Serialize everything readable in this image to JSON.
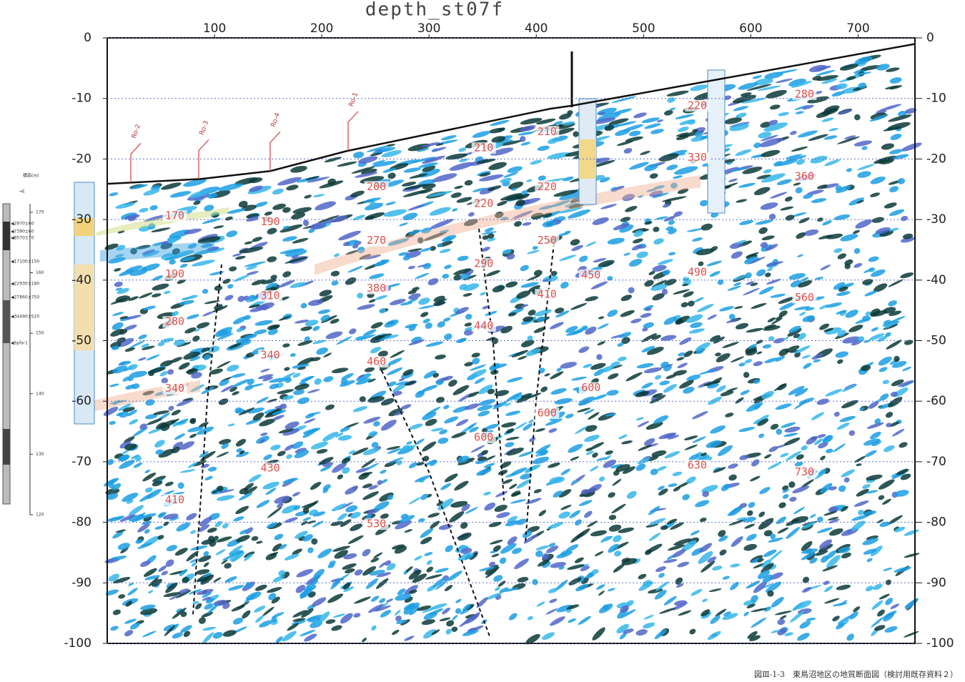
{
  "chart_data": {
    "type": "section",
    "title": "depth_st07f",
    "xlim": [
      0,
      753
    ],
    "ylim": [
      -100,
      0
    ],
    "xticks": [
      100,
      200,
      300,
      400,
      500,
      600,
      700
    ],
    "yticks": [
      0,
      -10,
      -20,
      -30,
      -40,
      -50,
      -60,
      -70,
      -80,
      -90,
      -100
    ],
    "y2ticks": [
      0,
      -10,
      -20,
      -30,
      -40,
      -50,
      -60,
      -70,
      -80,
      -90,
      -100
    ],
    "grid": true,
    "surface": {
      "x": [
        0,
        87,
        152,
        223,
        413,
        433,
        753
      ],
      "y": [
        -24.1,
        -23.3,
        -22,
        -18.7,
        -11.7,
        -11.2,
        -1
      ]
    },
    "velocity_labels": {
      "x": [
        63,
        152,
        251,
        351,
        410,
        550,
        650,
        550,
        650,
        410,
        351,
        63,
        251,
        410,
        351,
        152,
        251,
        410,
        451,
        550,
        650,
        63,
        351,
        152,
        251,
        63,
        451,
        410,
        351,
        152,
        550,
        650,
        63,
        251
      ],
      "y": [
        -29.4,
        -30.4,
        -24.6,
        -18.2,
        -15.5,
        -11.2,
        -9.3,
        -19.8,
        -22.9,
        -24.6,
        -27.4,
        -39,
        -33.5,
        -33.5,
        -37.3,
        -42.6,
        -41.4,
        -42.4,
        -39.2,
        -38.7,
        -42.9,
        -46.9,
        -47.6,
        -52.4,
        -53.5,
        -57.9,
        -57.8,
        -62,
        -66,
        -71.1,
        -70.6,
        -71.7,
        -76.3,
        -80.3
      ],
      "values": [
        170,
        190,
        200,
        210,
        210,
        220,
        280,
        330,
        360,
        220,
        220,
        190,
        270,
        250,
        290,
        310,
        380,
        410,
        450,
        490,
        560,
        280,
        440,
        340,
        460,
        340,
        600,
        600,
        600,
        430,
        630,
        730,
        410,
        530
      ]
    },
    "boreholes": [
      "Ro-2",
      "Ro-3",
      "Ro-4",
      "Ro-1"
    ],
    "column": {
      "axis_title": "標高(m)",
      "direction": "→E",
      "ylim": [
        120,
        172
      ],
      "yticks": [
        170,
        160,
        150,
        140,
        130,
        120
      ],
      "ages": [
        "◀2970±60",
        "◀7390±60",
        "◀8570±70",
        "◀17100±150",
        "◀22930±180",
        "◀27860±750",
        "◀34490±520",
        "◀Spfa-1"
      ]
    },
    "caption": "図Ⅲ-1-3　東鳥沼地区の地質断面図（検討用既存資料２）"
  }
}
